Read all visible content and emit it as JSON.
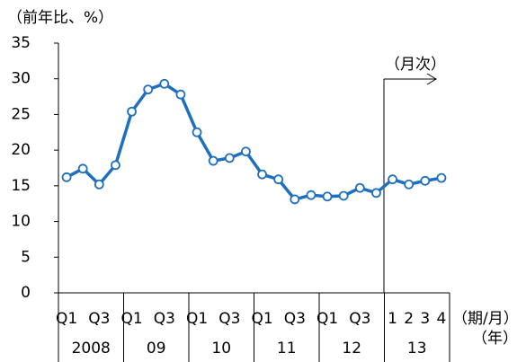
{
  "chart_data": {
    "type": "line",
    "y_label": "（前年比、%）",
    "x_label": "（期/月）",
    "x2_label": "（年）",
    "annotation": "（月次）",
    "categories": [
      "Q1",
      null,
      "Q3",
      null,
      "Q1",
      null,
      "Q3",
      null,
      "Q1",
      null,
      "Q3",
      null,
      "Q1",
      null,
      "Q3",
      null,
      "Q1",
      null,
      "Q3",
      null,
      "1",
      "2",
      "3",
      "4"
    ],
    "groups": [
      {
        "label": "2008",
        "size": 4
      },
      {
        "label": "09",
        "size": 4
      },
      {
        "label": "10",
        "size": 4
      },
      {
        "label": "11",
        "size": 4
      },
      {
        "label": "12",
        "size": 4
      },
      {
        "label": "13",
        "size": 4
      }
    ],
    "values": [
      16.2,
      17.4,
      15.2,
      17.9,
      25.4,
      28.5,
      29.3,
      27.8,
      22.5,
      18.5,
      18.9,
      19.8,
      16.6,
      15.9,
      13.1,
      13.7,
      13.5,
      13.6,
      14.7,
      14.0,
      15.9,
      15.2,
      15.7,
      16.1
    ],
    "color": "#1f6fbf",
    "ylim": [
      0,
      35
    ],
    "yticks": [
      0,
      5,
      10,
      15,
      20,
      25,
      30,
      35
    ]
  }
}
